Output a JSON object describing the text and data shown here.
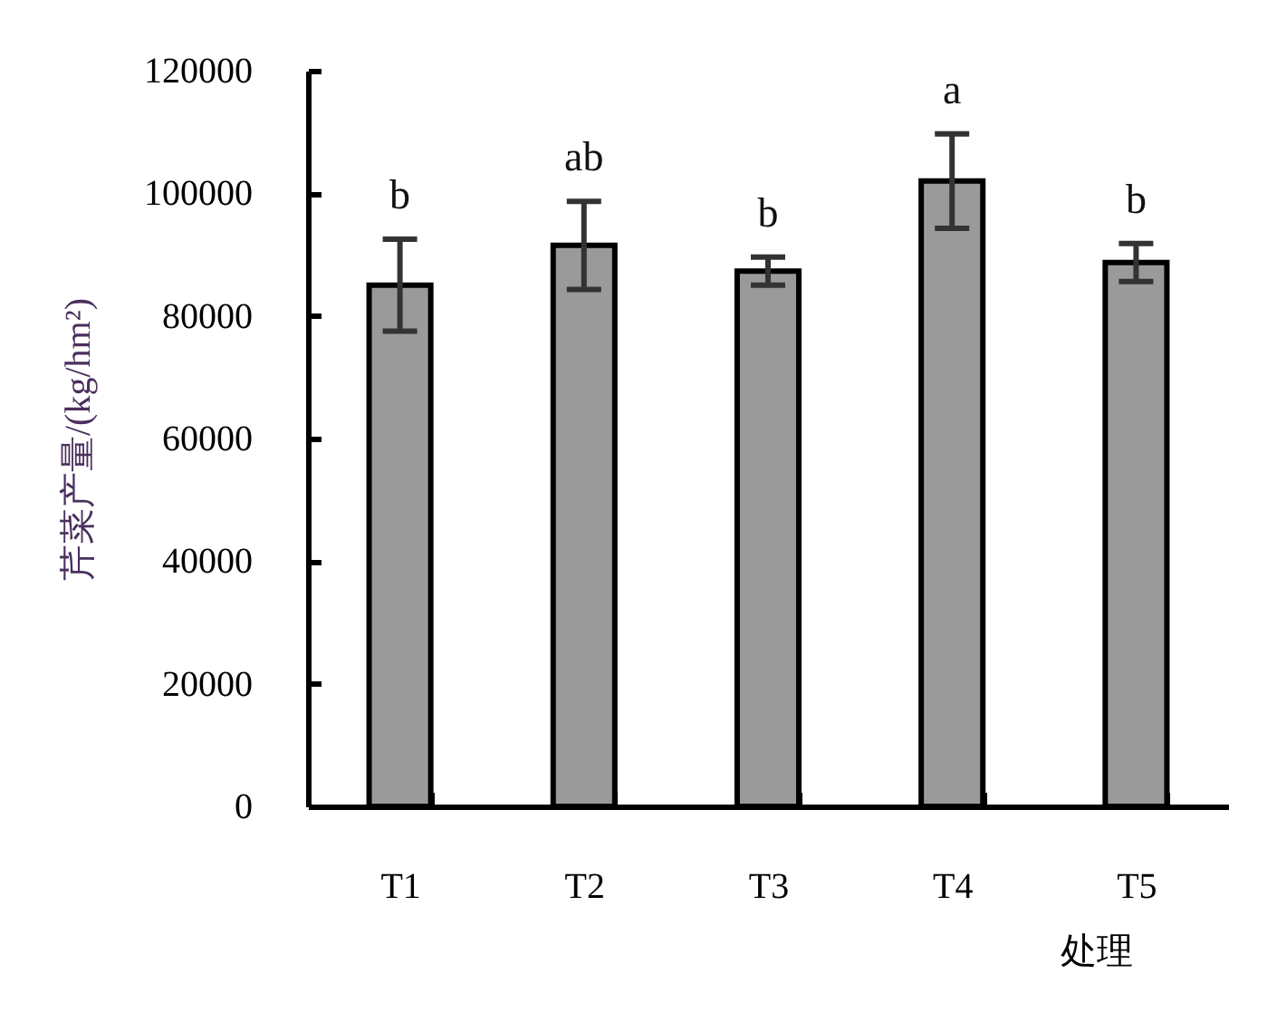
{
  "chart_data": {
    "type": "bar",
    "xlabel": "处理",
    "ylabel": "芹菜产量/(kg/hm²)",
    "categories": [
      "T1",
      "T2",
      "T3",
      "T4",
      "T5"
    ],
    "values": [
      85000,
      91500,
      87300,
      102000,
      88700
    ],
    "errors": [
      7500,
      7200,
      2300,
      7700,
      3100
    ],
    "color": "#9a9a9a",
    "ylim": [
      0,
      120000
    ],
    "yticks": [
      0,
      20000,
      40000,
      60000,
      80000,
      100000,
      120000
    ],
    "grid": false,
    "annotations": [
      {
        "text": "b",
        "x": "T1",
        "y": 92500
      },
      {
        "text": "ab",
        "x": "T2",
        "y": 98700
      },
      {
        "text": "b",
        "x": "T3",
        "y": 89600
      },
      {
        "text": "a",
        "x": "T4",
        "y": 109700
      },
      {
        "text": "b",
        "x": "T5",
        "y": 91800
      }
    ]
  }
}
